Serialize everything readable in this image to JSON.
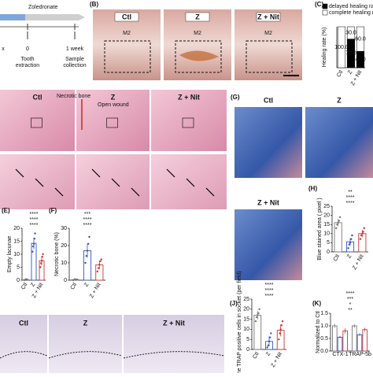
{
  "timeline": {
    "drug": "Zoledronate",
    "ticks": [
      "x",
      "0",
      "1 week"
    ],
    "extraction": [
      "Tooth",
      "extraction"
    ],
    "collection": [
      "Sample",
      "collection"
    ]
  },
  "b": {
    "label": "(B)",
    "images": [
      {
        "title": "Ctl",
        "tooth": "M2"
      },
      {
        "title": "Z",
        "tooth": "M2"
      },
      {
        "title": "Z + Nit",
        "tooth": "M2"
      }
    ]
  },
  "d": {
    "images": [
      "Ctl",
      "Z",
      "Z + Nit"
    ],
    "necrotic": "Necrotic bone",
    "wound": "Open wound"
  },
  "g": {
    "label": "(G)",
    "images": [
      "Ctl",
      "Z",
      "Z + Nit"
    ]
  },
  "i": {
    "images": [
      "Ctl",
      "Z",
      "Z + Nit"
    ]
  },
  "chart_data": [
    {
      "type": "stacked_bar",
      "label": "(C)",
      "ylabel": "Healing rate (%)",
      "categories": [
        "Ctl",
        "Z",
        "Z + Nit"
      ],
      "ylim": [
        0,
        100
      ],
      "series": [
        {
          "name": "delayed healing rate",
          "color": "#000000",
          "values": [
            0,
            70,
            40
          ],
          "value_labels": [
            null,
            "70.0",
            "40.0"
          ]
        },
        {
          "name": "complete healing rate",
          "color": "#ffffff",
          "values": [
            100,
            30,
            60
          ],
          "value_labels": [
            "100.0",
            "30.0",
            "60.0"
          ]
        }
      ]
    },
    {
      "type": "bar",
      "label": "(E)",
      "ylabel": "Empty lacunae",
      "categories": [
        "Ctl",
        "Z",
        "Z + Nit"
      ],
      "colors": [
        "#777777",
        "#3355bb",
        "#cc3333"
      ],
      "values": [
        0.2,
        14.2,
        7.5
      ],
      "errors": [
        0.2,
        2.2,
        1.8
      ],
      "points": [
        [
          0,
          0.2,
          0.4,
          0.1,
          0.3
        ],
        [
          11,
          13,
          14,
          16,
          18
        ],
        [
          5,
          6.5,
          7.5,
          9,
          10
        ]
      ],
      "ylim": [
        0,
        20
      ],
      "yticks": [
        0,
        5,
        10,
        15,
        20
      ],
      "significance": [
        "****",
        "****",
        "****"
      ]
    },
    {
      "type": "bar",
      "label": "(F)",
      "ylabel": "Necrotic bone (%)",
      "categories": [
        "Ctl",
        "Z",
        "Z + Nit"
      ],
      "colors": [
        "#777777",
        "#3355bb",
        "#cc3333"
      ],
      "values": [
        0.3,
        17,
        8.8
      ],
      "errors": [
        0.3,
        4,
        2.5
      ],
      "points": [
        [
          0,
          0.3,
          0.6,
          0.2,
          0.4
        ],
        [
          10,
          14,
          17,
          21,
          25
        ],
        [
          5,
          7,
          9,
          11,
          12
        ]
      ],
      "ylim": [
        0,
        30
      ],
      "yticks": [
        0,
        10,
        20,
        30
      ],
      "significance": [
        "****",
        "****",
        "***"
      ]
    },
    {
      "type": "bar",
      "label": "(H)",
      "ylabel": "Blue stained area ( pixel )",
      "categories": [
        "Ctl",
        "Z",
        "Z + Nit"
      ],
      "colors": [
        "#777777",
        "#3355bb",
        "#cc3333"
      ],
      "values": [
        16,
        5.5,
        10
      ],
      "errors": [
        2,
        2,
        2
      ],
      "points": [
        [
          13,
          15,
          16,
          17,
          19
        ],
        [
          2,
          4,
          5,
          7,
          9
        ],
        [
          7,
          9,
          10,
          11,
          13
        ]
      ],
      "ylim": [
        0,
        25
      ],
      "yticks": [
        0,
        5,
        10,
        15,
        20,
        25
      ],
      "significance": [
        "****",
        "****",
        "**"
      ]
    },
    {
      "type": "bar",
      "label": "(J)",
      "ylabel": "The TRAP positive cells in socket (per field)",
      "categories": [
        "Ctl",
        "Z",
        "Z + Nit"
      ],
      "colors": [
        "#777777",
        "#3355bb",
        "#cc3333"
      ],
      "values": [
        17,
        4,
        9.5
      ],
      "errors": [
        2,
        2.5,
        3
      ],
      "points": [
        [
          14,
          16,
          17,
          18,
          20
        ],
        [
          1,
          2,
          4,
          6,
          8
        ],
        [
          5,
          8,
          10,
          12,
          14
        ]
      ],
      "ylim": [
        0,
        25
      ],
      "yticks": [
        0,
        5,
        10,
        15,
        20,
        25
      ],
      "significance": [
        "****",
        "****",
        "****"
      ]
    },
    {
      "type": "grouped_bar",
      "label": "(K)",
      "ylabel": "Normalized to Ctl",
      "categories": [
        "CTX-1",
        "TRAP-5b"
      ],
      "series": [
        {
          "color": "#777777",
          "values": [
            1.0,
            1.0
          ],
          "errors": [
            0.08,
            0.07
          ]
        },
        {
          "color": "#3355bb",
          "values": [
            0.55,
            0.65
          ],
          "errors": [
            0.05,
            0.05
          ]
        },
        {
          "color": "#cc3333",
          "values": [
            0.8,
            0.85
          ],
          "errors": [
            0.1,
            0.07
          ]
        }
      ],
      "ylim": [
        0,
        1.5
      ],
      "yticks": [
        {
          "value": 0,
          "label": "0.0"
        },
        0.5,
        {
          "value": 1,
          "label": "1.0"
        },
        1.5
      ],
      "significance": [
        "**",
        "*",
        "***",
        "****"
      ]
    }
  ]
}
